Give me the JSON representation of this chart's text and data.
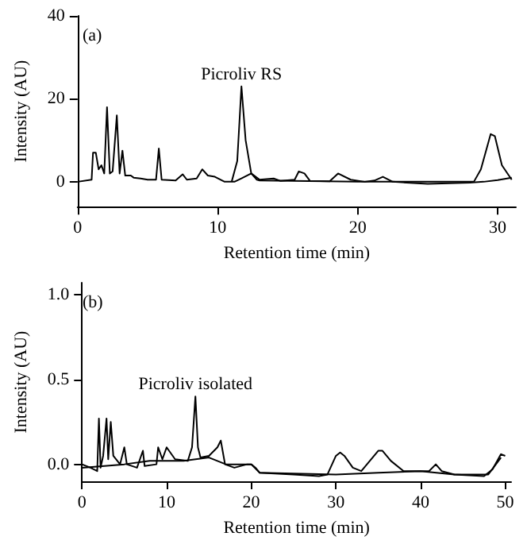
{
  "chart_data": [
    {
      "type": "line",
      "title": "(a)",
      "xlabel": "Retention time (min)",
      "ylabel": "Intensity (AU)",
      "xlim": [
        0,
        31.3
      ],
      "xticks": [
        0,
        10,
        20,
        30
      ],
      "ylim": [
        -6,
        40
      ],
      "yticks": [
        0,
        20,
        40
      ],
      "marker": "none",
      "annotations": [
        {
          "text": "Picroliv RS",
          "x": 11.7,
          "y": 23
        }
      ],
      "series": [
        {
          "color": "#000000",
          "x": [
            0,
            1.0,
            1.1,
            1.3,
            1.5,
            1.7,
            1.9,
            2.1,
            2.3,
            2.5,
            2.8,
            3.0,
            3.2,
            3.4,
            3.8,
            4.0,
            4.5,
            5.0,
            5.6,
            5.8,
            6.0,
            7,
            7.5,
            7.8,
            8.5,
            8.9,
            9.3,
            9.8,
            10.5,
            11.2,
            11.7,
            12.4,
            13,
            14.0,
            14.5,
            15.5,
            15.8,
            16.2,
            16.6,
            18,
            18.6,
            19.5,
            20.5,
            21.2,
            21.8,
            22.5,
            25,
            28,
            29,
            30,
            31
          ],
          "values": [
            0,
            0.5,
            7,
            7,
            3,
            4,
            2,
            18,
            2,
            2.5,
            16,
            2,
            7.5,
            1.5,
            1.5,
            1,
            0.8,
            0.5,
            0.5,
            8,
            0.5,
            0.3,
            1.8,
            0.5,
            0.8,
            3,
            1.5,
            1.2,
            0,
            0,
            0.8,
            2,
            0.5,
            0.8,
            0.2,
            0.5,
            2.5,
            2,
            0.2,
            0.1,
            2,
            0.5,
            0,
            0.3,
            1.2,
            0,
            -0.5,
            -0.2,
            0,
            0.4,
            1
          ]
        },
        {
          "color": "#000000",
          "x": [
            11.0,
            11.4,
            11.7,
            12.0,
            12.4,
            12.8,
            13,
            20,
            28.3,
            28.8,
            29.5,
            29.8,
            30.3,
            31
          ],
          "values": [
            0,
            5,
            23,
            10,
            2,
            0.5,
            0.3,
            0,
            0,
            3,
            11.5,
            11,
            4,
            0.5
          ]
        }
      ]
    },
    {
      "type": "line",
      "title": "(b)",
      "xlabel": "Retention time (min)",
      "ylabel": "Intensity (AU)",
      "xlim": [
        0,
        50.7
      ],
      "xticks": [
        0,
        10,
        20,
        30,
        40,
        50
      ],
      "ylim": [
        -0.1,
        1.07
      ],
      "yticks": [
        {
          "value": 0,
          "label": "0.0"
        },
        {
          "value": 0.5,
          "label": "0.5"
        },
        {
          "value": 1,
          "label": "1.0"
        }
      ],
      "marker": "none",
      "annotations": [
        {
          "text": "Picroliv isolated",
          "x": 13.4,
          "y": 0.4
        }
      ],
      "series": [
        {
          "color": "#000000",
          "x": [
            0,
            1,
            1.8,
            2,
            2.2,
            2.5,
            2.9,
            3.1,
            3.4,
            3.7,
            4.5,
            5,
            5.3,
            6.5,
            7.2,
            7.4,
            8.8,
            9.0,
            9.5,
            10,
            11,
            12.5,
            13,
            13.4,
            13.7,
            14,
            15,
            16,
            16.4,
            16.9,
            18,
            19.5,
            20,
            20.5,
            21,
            25,
            28,
            29,
            30,
            30.5,
            31,
            32,
            33,
            34,
            35,
            35.5,
            36.5,
            38,
            41,
            41.8,
            42.5,
            44,
            47.5,
            48.5,
            49.5,
            50
          ],
          "values": [
            0,
            -0.02,
            -0.04,
            0.27,
            -0.02,
            0.05,
            0.27,
            0.03,
            0.25,
            0.05,
            0.0,
            0.1,
            0.0,
            -0.02,
            0.08,
            -0.01,
            0.0,
            0.1,
            0.03,
            0.1,
            0.03,
            0.02,
            0.1,
            0.4,
            0.1,
            0.04,
            0.05,
            0.1,
            0.14,
            0.0,
            -0.02,
            0.0,
            0.0,
            -0.02,
            -0.05,
            -0.06,
            -0.07,
            -0.06,
            0.05,
            0.07,
            0.05,
            -0.02,
            -0.04,
            0.02,
            0.08,
            0.08,
            0.02,
            -0.04,
            -0.04,
            0.0,
            -0.04,
            -0.06,
            -0.07,
            -0.03,
            0.06,
            0.05
          ]
        },
        {
          "color": "#000000",
          "x": [
            0,
            5,
            8,
            12,
            15,
            17,
            20,
            21,
            30,
            35,
            40,
            44,
            48,
            49.5
          ],
          "values": [
            -0.02,
            0.0,
            0.02,
            0.02,
            0.04,
            0.0,
            0.0,
            -0.05,
            -0.06,
            -0.05,
            -0.04,
            -0.06,
            -0.06,
            0.04
          ]
        }
      ]
    }
  ]
}
